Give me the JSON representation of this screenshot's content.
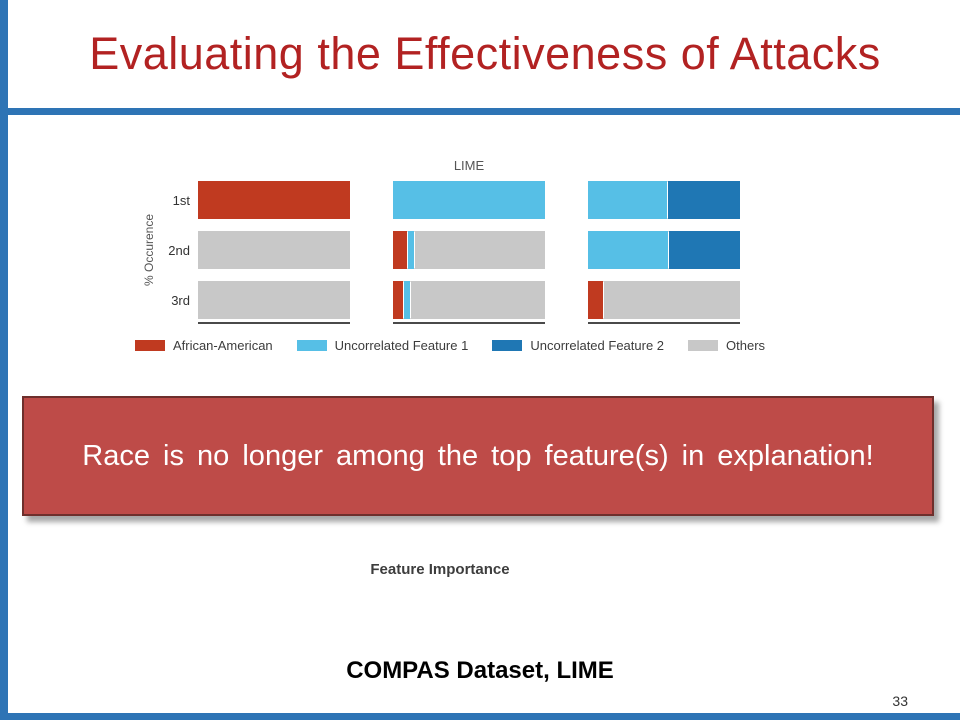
{
  "slide": {
    "title": "Evaluating the Effectiveness of Attacks",
    "callout_text": "Race is no longer among the top feature(s) in explanation!",
    "chart_caption": "Feature Importance",
    "footer_label": "COMPAS Dataset, LIME",
    "page_number": "33"
  },
  "colors": {
    "title_red": "#b22222",
    "accent_blue": "#2e74b5",
    "callout_fill": "#be4b48",
    "callout_border": "#6e2f2c",
    "callout_text": "#ffffff"
  },
  "chart_data": {
    "type": "bar",
    "stacked": true,
    "orientation": "horizontal",
    "title": "LIME",
    "ylabel": "% Occurence",
    "rows": [
      "1st",
      "2nd",
      "3rd"
    ],
    "xlim_percent": [
      0,
      100
    ],
    "grid": false,
    "legend_position": "bottom",
    "legend": [
      "African-American",
      "Uncorrelated Feature 1",
      "Uncorrelated Feature 2",
      "Others"
    ],
    "series_colors": {
      "African-American": "#c03a20",
      "Uncorrelated Feature 1": "#56bfe6",
      "Uncorrelated Feature 2": "#1f77b4",
      "Others": "#c8c8c8"
    },
    "panels": [
      {
        "name": "biased-classifier",
        "rows": [
          {
            "label": "1st",
            "segments": [
              {
                "series": "African-American",
                "value": 100
              }
            ]
          },
          {
            "label": "2nd",
            "segments": [
              {
                "series": "Others",
                "value": 100
              }
            ]
          },
          {
            "label": "3rd",
            "segments": [
              {
                "series": "Others",
                "value": 100
              }
            ]
          }
        ]
      },
      {
        "name": "adversarial-one-uncorrelated-feature",
        "rows": [
          {
            "label": "1st",
            "segments": [
              {
                "series": "Uncorrelated Feature 1",
                "value": 100
              }
            ]
          },
          {
            "label": "2nd",
            "segments": [
              {
                "series": "African-American",
                "value": 9
              },
              {
                "series": "Uncorrelated Feature 1",
                "value": 4
              },
              {
                "series": "Others",
                "value": 87
              }
            ]
          },
          {
            "label": "3rd",
            "segments": [
              {
                "series": "African-American",
                "value": 7
              },
              {
                "series": "Uncorrelated Feature 1",
                "value": 4
              },
              {
                "series": "Others",
                "value": 89
              }
            ]
          }
        ]
      },
      {
        "name": "adversarial-two-uncorrelated-features",
        "rows": [
          {
            "label": "1st",
            "segments": [
              {
                "series": "Uncorrelated Feature 1",
                "value": 52
              },
              {
                "series": "Uncorrelated Feature 2",
                "value": 48
              }
            ]
          },
          {
            "label": "2nd",
            "segments": [
              {
                "series": "Uncorrelated Feature 1",
                "value": 53
              },
              {
                "series": "Uncorrelated Feature 2",
                "value": 47
              }
            ]
          },
          {
            "label": "3rd",
            "segments": [
              {
                "series": "African-American",
                "value": 10
              },
              {
                "series": "Others",
                "value": 90
              }
            ]
          }
        ]
      }
    ]
  }
}
